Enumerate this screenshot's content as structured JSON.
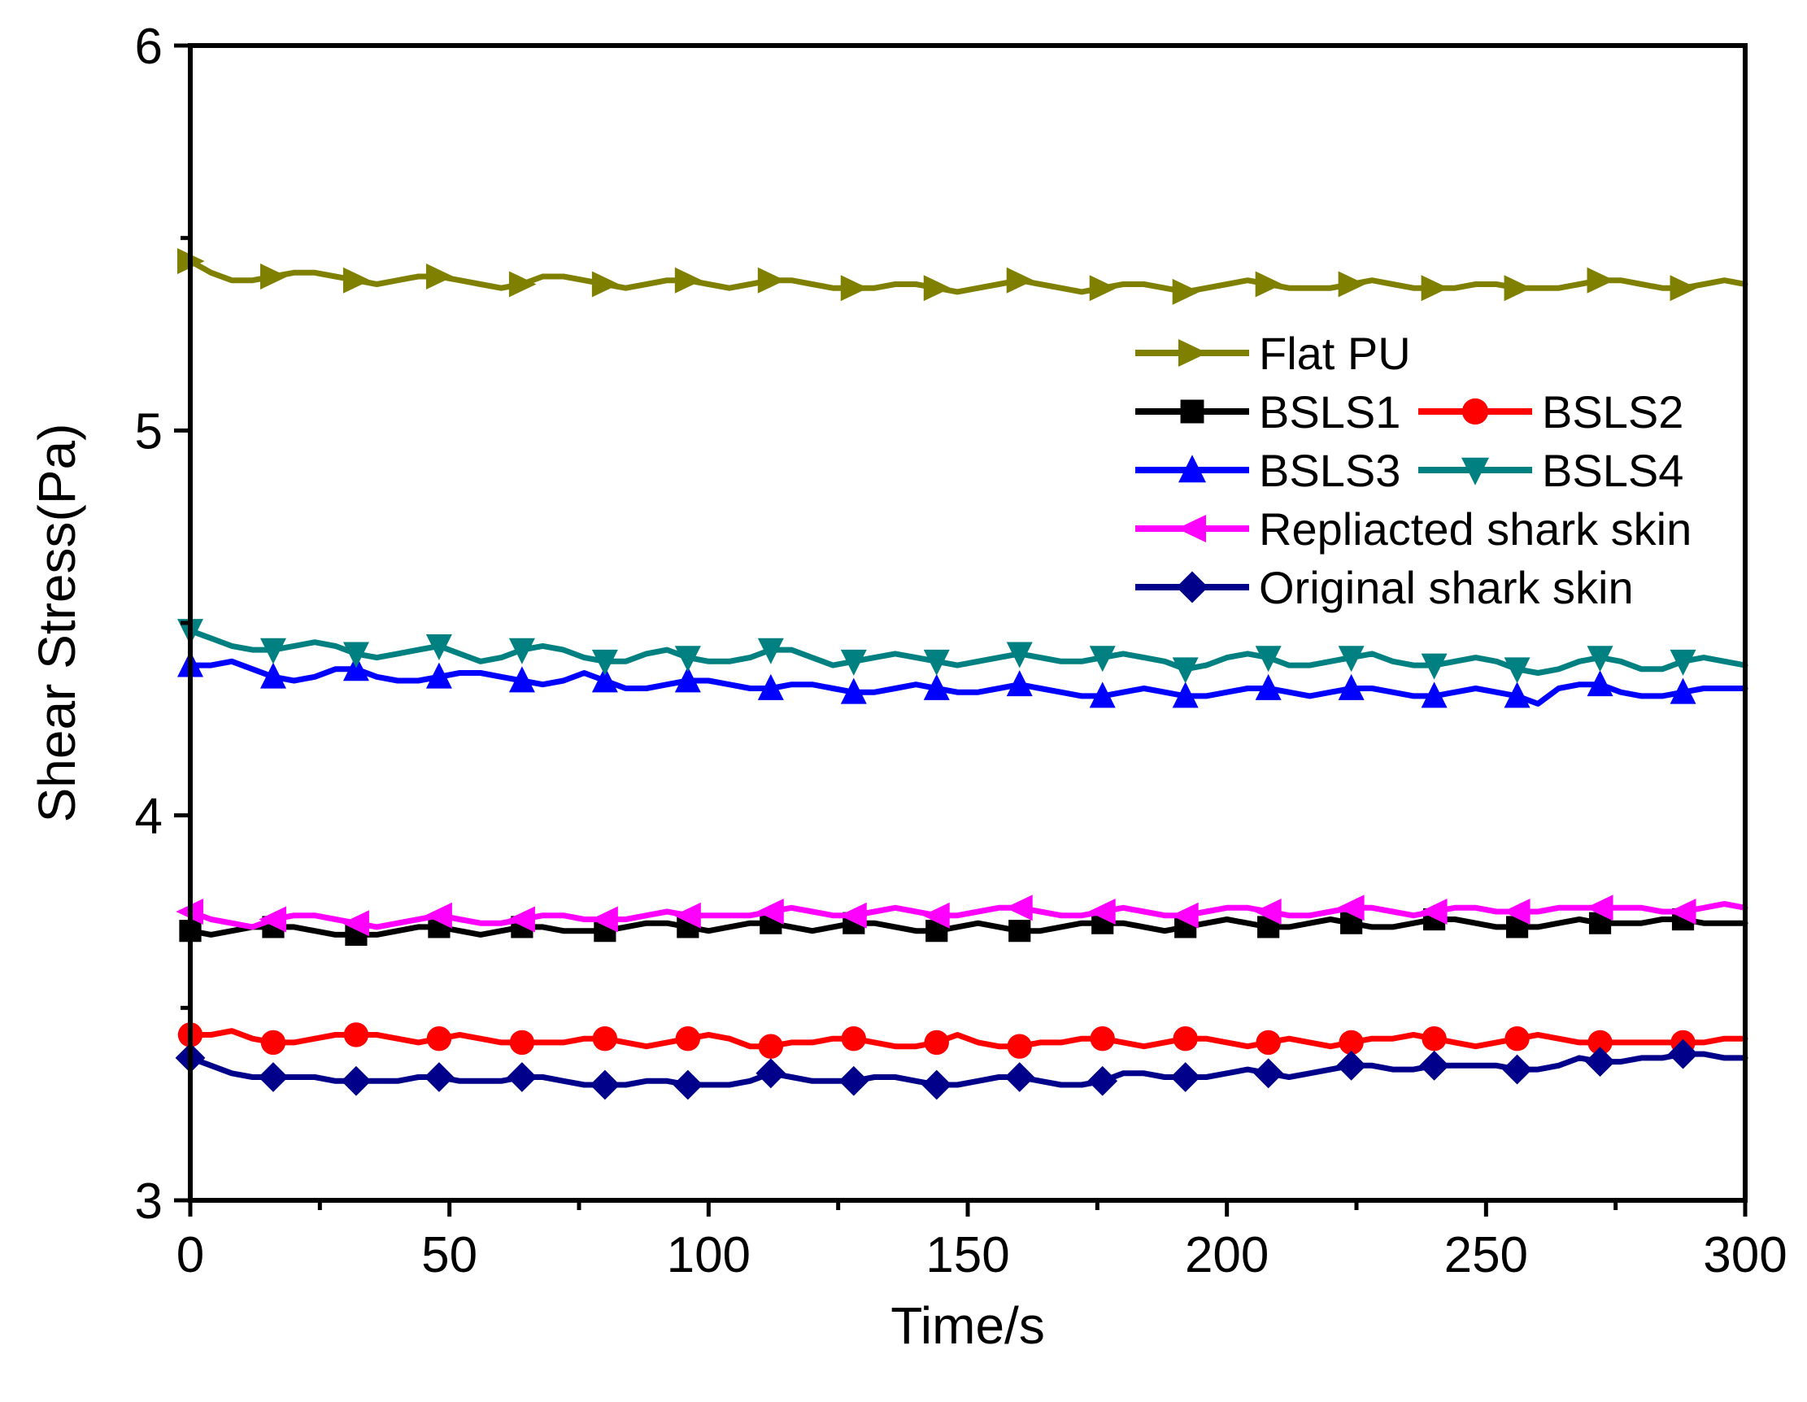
{
  "chart_data": {
    "type": "line",
    "title": "",
    "xlabel": "Time/s",
    "ylabel": "Shear Stress(Pa)",
    "xlim": [
      0,
      300
    ],
    "ylim": [
      3,
      6
    ],
    "x_ticks": [
      0,
      50,
      100,
      150,
      200,
      250,
      300
    ],
    "y_ticks": [
      3,
      4,
      5,
      6
    ],
    "x_tick_labels": [
      "0",
      "50",
      "100",
      "150",
      "200",
      "250",
      "300"
    ],
    "y_tick_labels": [
      "3",
      "4",
      "5",
      "6"
    ],
    "grid": false,
    "legend_position": "right, upper-middle",
    "x": [
      0,
      4,
      8,
      12,
      16,
      20,
      24,
      28,
      32,
      36,
      40,
      44,
      48,
      52,
      56,
      60,
      64,
      68,
      72,
      76,
      80,
      84,
      88,
      92,
      96,
      100,
      104,
      108,
      112,
      116,
      120,
      124,
      128,
      132,
      136,
      140,
      144,
      148,
      152,
      156,
      160,
      164,
      168,
      172,
      176,
      180,
      184,
      188,
      192,
      196,
      200,
      204,
      208,
      212,
      216,
      220,
      224,
      228,
      232,
      236,
      240,
      244,
      248,
      252,
      256,
      260,
      264,
      268,
      272,
      276,
      280,
      284,
      288,
      292,
      296,
      300
    ],
    "series": [
      {
        "name": "Flat PU",
        "color": "#808000",
        "marker": "triangle-right",
        "values": [
          5.44,
          5.41,
          5.39,
          5.39,
          5.4,
          5.41,
          5.41,
          5.4,
          5.39,
          5.38,
          5.39,
          5.4,
          5.4,
          5.39,
          5.38,
          5.37,
          5.38,
          5.4,
          5.4,
          5.39,
          5.38,
          5.37,
          5.38,
          5.39,
          5.39,
          5.38,
          5.37,
          5.38,
          5.39,
          5.39,
          5.38,
          5.37,
          5.37,
          5.37,
          5.38,
          5.38,
          5.37,
          5.36,
          5.37,
          5.38,
          5.39,
          5.38,
          5.37,
          5.36,
          5.37,
          5.38,
          5.38,
          5.37,
          5.36,
          5.37,
          5.38,
          5.39,
          5.38,
          5.37,
          5.37,
          5.37,
          5.38,
          5.39,
          5.38,
          5.37,
          5.37,
          5.37,
          5.38,
          5.38,
          5.37,
          5.37,
          5.37,
          5.38,
          5.39,
          5.39,
          5.38,
          5.37,
          5.37,
          5.38,
          5.39,
          5.38
        ]
      },
      {
        "name": "BSLS1",
        "color": "#000000",
        "marker": "square",
        "values": [
          3.7,
          3.69,
          3.7,
          3.71,
          3.71,
          3.71,
          3.7,
          3.69,
          3.69,
          3.69,
          3.7,
          3.71,
          3.71,
          3.7,
          3.69,
          3.7,
          3.71,
          3.71,
          3.7,
          3.7,
          3.7,
          3.71,
          3.72,
          3.72,
          3.71,
          3.7,
          3.71,
          3.72,
          3.72,
          3.71,
          3.7,
          3.71,
          3.72,
          3.72,
          3.71,
          3.7,
          3.7,
          3.71,
          3.72,
          3.71,
          3.7,
          3.7,
          3.71,
          3.72,
          3.72,
          3.72,
          3.71,
          3.7,
          3.71,
          3.72,
          3.73,
          3.72,
          3.71,
          3.71,
          3.72,
          3.73,
          3.72,
          3.71,
          3.71,
          3.72,
          3.73,
          3.73,
          3.72,
          3.71,
          3.71,
          3.71,
          3.72,
          3.73,
          3.72,
          3.72,
          3.72,
          3.73,
          3.73,
          3.72,
          3.72,
          3.72
        ]
      },
      {
        "name": "BSLS2",
        "color": "#ff0000",
        "marker": "circle",
        "values": [
          3.43,
          3.43,
          3.44,
          3.42,
          3.41,
          3.41,
          3.42,
          3.43,
          3.43,
          3.43,
          3.42,
          3.41,
          3.42,
          3.43,
          3.42,
          3.41,
          3.41,
          3.41,
          3.41,
          3.42,
          3.42,
          3.41,
          3.4,
          3.41,
          3.42,
          3.43,
          3.42,
          3.4,
          3.4,
          3.41,
          3.41,
          3.42,
          3.42,
          3.41,
          3.4,
          3.4,
          3.41,
          3.43,
          3.41,
          3.4,
          3.4,
          3.41,
          3.41,
          3.42,
          3.42,
          3.41,
          3.4,
          3.41,
          3.42,
          3.42,
          3.41,
          3.4,
          3.41,
          3.42,
          3.41,
          3.4,
          3.41,
          3.42,
          3.42,
          3.43,
          3.42,
          3.41,
          3.4,
          3.41,
          3.42,
          3.43,
          3.42,
          3.41,
          3.41,
          3.41,
          3.41,
          3.41,
          3.41,
          3.41,
          3.42,
          3.42
        ]
      },
      {
        "name": "BSLS3",
        "color": "#0000ff",
        "marker": "triangle-up",
        "values": [
          4.39,
          4.39,
          4.4,
          4.38,
          4.36,
          4.35,
          4.36,
          4.38,
          4.38,
          4.36,
          4.35,
          4.35,
          4.36,
          4.37,
          4.37,
          4.36,
          4.35,
          4.34,
          4.35,
          4.37,
          4.35,
          4.33,
          4.33,
          4.34,
          4.35,
          4.35,
          4.34,
          4.33,
          4.33,
          4.34,
          4.34,
          4.33,
          4.32,
          4.32,
          4.33,
          4.34,
          4.33,
          4.32,
          4.32,
          4.33,
          4.34,
          4.33,
          4.32,
          4.31,
          4.31,
          4.32,
          4.33,
          4.32,
          4.31,
          4.31,
          4.32,
          4.33,
          4.33,
          4.32,
          4.31,
          4.32,
          4.33,
          4.33,
          4.32,
          4.31,
          4.31,
          4.32,
          4.33,
          4.32,
          4.31,
          4.29,
          4.33,
          4.34,
          4.34,
          4.32,
          4.31,
          4.31,
          4.32,
          4.33,
          4.33,
          4.33
        ]
      },
      {
        "name": "BSLS4",
        "color": "#008080",
        "marker": "triangle-down",
        "values": [
          4.48,
          4.46,
          4.44,
          4.43,
          4.43,
          4.44,
          4.45,
          4.44,
          4.42,
          4.41,
          4.42,
          4.43,
          4.44,
          4.42,
          4.4,
          4.41,
          4.43,
          4.44,
          4.43,
          4.41,
          4.4,
          4.4,
          4.42,
          4.43,
          4.41,
          4.4,
          4.4,
          4.41,
          4.43,
          4.43,
          4.41,
          4.39,
          4.4,
          4.41,
          4.42,
          4.41,
          4.4,
          4.39,
          4.4,
          4.41,
          4.42,
          4.41,
          4.4,
          4.4,
          4.41,
          4.42,
          4.41,
          4.4,
          4.38,
          4.39,
          4.41,
          4.42,
          4.41,
          4.39,
          4.39,
          4.4,
          4.41,
          4.42,
          4.4,
          4.39,
          4.39,
          4.4,
          4.41,
          4.4,
          4.38,
          4.37,
          4.38,
          4.4,
          4.41,
          4.4,
          4.38,
          4.38,
          4.4,
          4.41,
          4.4,
          4.39
        ]
      },
      {
        "name": "Repliacted shark skin",
        "color": "#ff00ff",
        "marker": "triangle-left",
        "values": [
          3.75,
          3.73,
          3.72,
          3.71,
          3.73,
          3.74,
          3.74,
          3.73,
          3.72,
          3.71,
          3.72,
          3.73,
          3.74,
          3.73,
          3.72,
          3.72,
          3.73,
          3.74,
          3.74,
          3.73,
          3.73,
          3.73,
          3.74,
          3.75,
          3.74,
          3.74,
          3.74,
          3.74,
          3.75,
          3.76,
          3.75,
          3.74,
          3.74,
          3.75,
          3.76,
          3.75,
          3.74,
          3.74,
          3.75,
          3.76,
          3.76,
          3.75,
          3.74,
          3.74,
          3.75,
          3.76,
          3.75,
          3.74,
          3.74,
          3.75,
          3.76,
          3.76,
          3.75,
          3.74,
          3.74,
          3.75,
          3.76,
          3.76,
          3.75,
          3.74,
          3.75,
          3.76,
          3.76,
          3.75,
          3.75,
          3.75,
          3.76,
          3.76,
          3.76,
          3.76,
          3.76,
          3.75,
          3.75,
          3.76,
          3.77,
          3.76
        ]
      },
      {
        "name": "Original shark skin",
        "color": "#00008b",
        "marker": "diamond",
        "values": [
          3.37,
          3.35,
          3.33,
          3.32,
          3.32,
          3.32,
          3.32,
          3.31,
          3.31,
          3.31,
          3.31,
          3.32,
          3.32,
          3.31,
          3.31,
          3.31,
          3.32,
          3.32,
          3.31,
          3.3,
          3.3,
          3.3,
          3.31,
          3.31,
          3.3,
          3.3,
          3.3,
          3.31,
          3.33,
          3.32,
          3.31,
          3.31,
          3.31,
          3.32,
          3.32,
          3.31,
          3.3,
          3.3,
          3.31,
          3.32,
          3.32,
          3.31,
          3.3,
          3.3,
          3.31,
          3.33,
          3.33,
          3.32,
          3.32,
          3.32,
          3.33,
          3.34,
          3.33,
          3.32,
          3.33,
          3.34,
          3.35,
          3.35,
          3.34,
          3.34,
          3.35,
          3.35,
          3.35,
          3.35,
          3.34,
          3.34,
          3.35,
          3.37,
          3.36,
          3.36,
          3.37,
          3.37,
          3.38,
          3.38,
          3.37,
          3.37
        ]
      }
    ]
  }
}
